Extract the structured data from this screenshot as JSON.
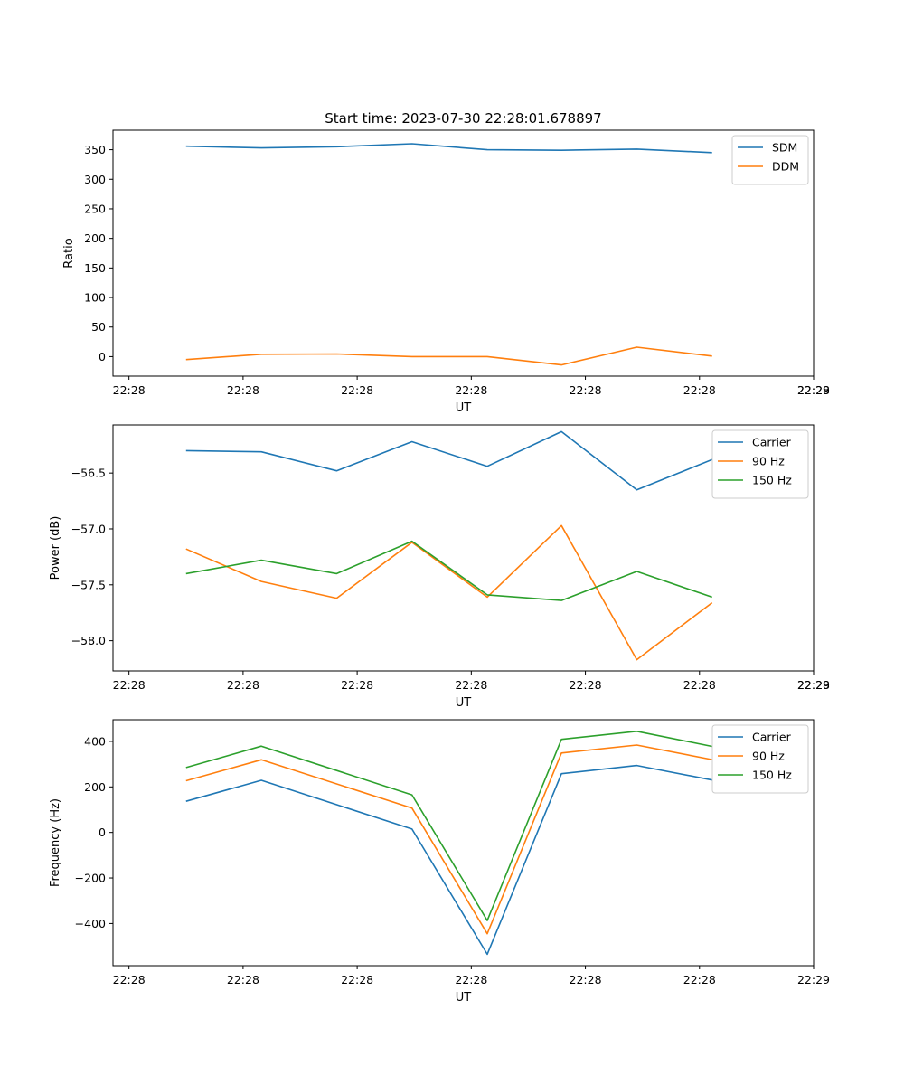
{
  "chart_data": [
    {
      "type": "line",
      "title": "Start time: 2023-07-30 22:28:01.678897",
      "xlabel": "UT",
      "ylabel": "Ratio",
      "ylim": [
        -33,
        383
      ],
      "yticks": [
        0,
        50,
        100,
        150,
        200,
        250,
        300,
        350
      ],
      "ytick_labels": [
        "0",
        "50",
        "100",
        "150",
        "200",
        "250",
        "300",
        "350"
      ],
      "xticks": [
        0,
        1,
        2,
        3,
        4,
        5,
        6
      ],
      "xtick_labels": [
        "22:28",
        "22:28",
        "22:28",
        "22:28",
        "22:28",
        "22:28",
        "22:28"
      ],
      "x": [
        0.5,
        1.16,
        1.82,
        2.48,
        3.14,
        3.79,
        4.45,
        5.11
      ],
      "xlim": [
        -0.14,
        6.0
      ],
      "legend_position": "top-right",
      "series": [
        {
          "name": "SDM",
          "color": "#1f77b4",
          "values": [
            356,
            353,
            355,
            360,
            350,
            349,
            351,
            345
          ]
        },
        {
          "name": "DDM",
          "color": "#ff7f0e",
          "values": [
            -5,
            4,
            4.5,
            0,
            0,
            -14,
            16,
            1
          ]
        }
      ]
    },
    {
      "type": "line",
      "title": "",
      "xlabel": "UT",
      "ylabel": "Power (dB)",
      "ylim": [
        -58.27,
        -56.07
      ],
      "yticks": [
        -58.0,
        -57.5,
        -57.0,
        -56.5
      ],
      "ytick_labels": [
        "−58.0",
        "−57.5",
        "−57.0",
        "−56.5"
      ],
      "xticks": [
        0,
        1,
        2,
        3,
        4,
        5,
        6
      ],
      "xtick_labels": [
        "22:28",
        "22:28",
        "22:28",
        "22:28",
        "22:28",
        "22:28",
        "22:28"
      ],
      "x": [
        0.5,
        1.16,
        1.82,
        2.48,
        3.14,
        3.79,
        4.45,
        5.11
      ],
      "xlim": [
        -0.14,
        6.0
      ],
      "legend_position": "top-right",
      "series": [
        {
          "name": "Carrier",
          "color": "#1f77b4",
          "values": [
            -56.3,
            -56.31,
            -56.48,
            -56.22,
            -56.44,
            -56.13,
            -56.65,
            -56.38
          ]
        },
        {
          "name": "90 Hz",
          "color": "#ff7f0e",
          "values": [
            -57.18,
            -57.47,
            -57.62,
            -57.12,
            -57.61,
            -56.97,
            -58.17,
            -57.66
          ]
        },
        {
          "name": "150 Hz",
          "color": "#2ca02c",
          "values": [
            -57.4,
            -57.28,
            -57.4,
            -57.11,
            -57.59,
            -57.64,
            -57.38,
            -57.61
          ]
        }
      ]
    },
    {
      "type": "line",
      "title": "",
      "xlabel": "UT",
      "ylabel": "Frequency (Hz)",
      "ylim": [
        -585,
        495
      ],
      "yticks": [
        -400,
        -200,
        0,
        200,
        400
      ],
      "ytick_labels": [
        "−400",
        "−200",
        "0",
        "200",
        "400"
      ],
      "xticks": [
        0,
        1,
        2,
        3,
        4,
        5,
        6
      ],
      "xtick_labels": [
        "22:28",
        "22:28",
        "22:28",
        "22:28",
        "22:28",
        "22:28",
        "22:29"
      ],
      "x": [
        0.5,
        1.16,
        2.48,
        3.14,
        3.79,
        4.45,
        5.11
      ],
      "xlim": [
        -0.14,
        6.0
      ],
      "legend_position": "top-right",
      "series": [
        {
          "name": "Carrier",
          "color": "#1f77b4",
          "values": [
            137,
            229,
            15,
            -535,
            258,
            294,
            230
          ]
        },
        {
          "name": "90 Hz",
          "color": "#ff7f0e",
          "values": [
            227,
            319,
            107,
            -445,
            349,
            384,
            320
          ]
        },
        {
          "name": "150 Hz",
          "color": "#2ca02c",
          "values": [
            285,
            379,
            165,
            -387,
            409,
            444,
            378
          ]
        }
      ]
    }
  ],
  "extra_tick": "22:29"
}
